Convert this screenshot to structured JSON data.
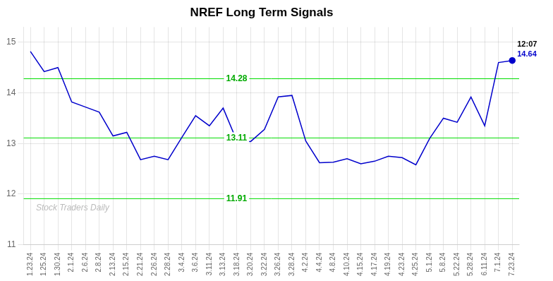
{
  "chart_data": {
    "type": "line",
    "title": "NREF Long Term Signals",
    "categories": [
      "1.23.24",
      "1.25.24",
      "1.30.24",
      "2.1.24",
      "2.6.24",
      "2.8.24",
      "2.13.24",
      "2.15.24",
      "2.21.24",
      "2.26.24",
      "2.28.24",
      "3.4.24",
      "3.6.24",
      "3.11.24",
      "3.13.24",
      "3.18.24",
      "3.20.24",
      "3.22.24",
      "3.26.24",
      "3.28.24",
      "4.2.24",
      "4.4.24",
      "4.8.24",
      "4.10.24",
      "4.15.24",
      "4.17.24",
      "4.19.24",
      "4.23.24",
      "4.25.24",
      "5.1.24",
      "5.8.24",
      "5.22.24",
      "5.28.24",
      "6.11.24",
      "7.1.24",
      "7.23.24"
    ],
    "values": [
      14.82,
      14.42,
      14.5,
      13.82,
      13.72,
      13.62,
      13.15,
      13.22,
      12.68,
      12.75,
      12.68,
      13.12,
      13.55,
      13.35,
      13.7,
      13.05,
      13.04,
      13.28,
      13.92,
      13.95,
      13.05,
      12.62,
      12.63,
      12.7,
      12.6,
      12.65,
      12.75,
      12.72,
      12.58,
      13.1,
      13.5,
      13.42,
      13.92,
      13.35,
      14.6,
      14.64
    ],
    "color": "#0000cc",
    "ylim": [
      11.0,
      15.3
    ],
    "yticks": [
      11,
      12,
      13,
      14,
      15
    ],
    "grid": true,
    "hlines": {
      "values": [
        14.28,
        13.11,
        11.91
      ],
      "color": "#00dd00",
      "label_color": "#00aa00"
    },
    "annotations": [
      {
        "text": "12:07"
      },
      {
        "text": "14.64",
        "color": "#0000cc"
      }
    ],
    "watermark": "Stock Traders Daily"
  }
}
